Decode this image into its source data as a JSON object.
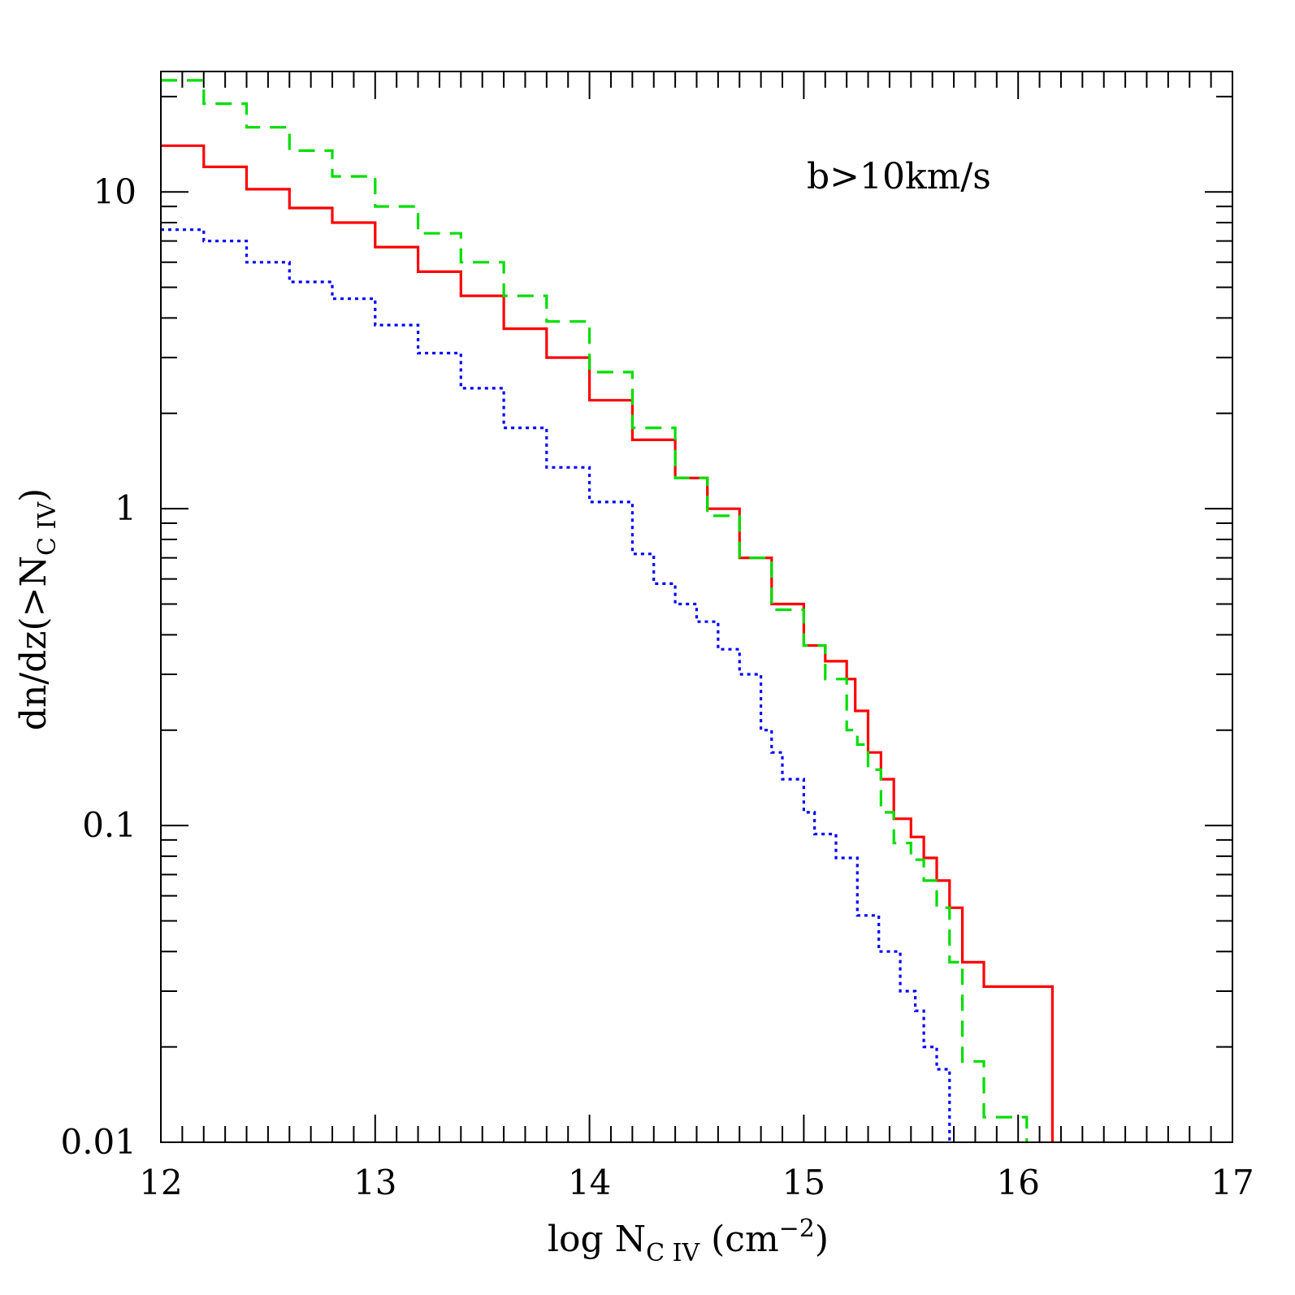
{
  "chart_data": {
    "type": "line",
    "step": true,
    "x_scale": "linear",
    "y_scale": "log",
    "xlim": [
      12,
      17
    ],
    "ylim": [
      0.01,
      24
    ],
    "grid": false,
    "x_ticks": [
      12,
      13,
      14,
      15,
      16,
      17
    ],
    "x_tick_labels": [
      "12",
      "13",
      "14",
      "15",
      "16",
      "17"
    ],
    "y_ticks": [
      0.01,
      0.1,
      1,
      10
    ],
    "y_tick_labels": [
      "0.01",
      "0.1",
      "1",
      "10"
    ],
    "xlabel": {
      "main": "log N",
      "sub": "C IV",
      "unit": "(cm",
      "sup": "−2",
      "close": ")"
    },
    "ylabel": {
      "main": "dn/dz(>N",
      "sub": "C IV",
      "close": ")"
    },
    "annotation": "b>10km/s",
    "series": [
      {
        "color": "#ff0000",
        "dash": "solid",
        "x": [
          12.0,
          12.2,
          12.4,
          12.6,
          12.8,
          13.0,
          13.2,
          13.4,
          13.6,
          13.8,
          14.0,
          14.2,
          14.4,
          14.55,
          14.7,
          14.85,
          15.0,
          15.1,
          15.2,
          15.24,
          15.3,
          15.36,
          15.42,
          15.5,
          15.56,
          15.62,
          15.68,
          15.74,
          15.84,
          16.16
        ],
        "y": [
          14.0,
          12.0,
          10.2,
          8.9,
          8.0,
          6.7,
          5.6,
          4.7,
          3.7,
          3.0,
          2.2,
          1.65,
          1.25,
          1.0,
          0.7,
          0.5,
          0.37,
          0.33,
          0.29,
          0.23,
          0.17,
          0.14,
          0.105,
          0.092,
          0.079,
          0.067,
          0.055,
          0.037,
          0.031,
          0.025
        ]
      },
      {
        "color": "#00dd00",
        "dash": "dashed",
        "x": [
          12.0,
          12.2,
          12.4,
          12.6,
          12.8,
          13.0,
          13.2,
          13.4,
          13.6,
          13.8,
          14.0,
          14.2,
          14.4,
          14.55,
          14.7,
          14.85,
          15.0,
          15.1,
          15.2,
          15.25,
          15.3,
          15.36,
          15.42,
          15.5,
          15.56,
          15.62,
          15.68,
          15.74,
          15.84,
          16.04
        ],
        "y": [
          22.5,
          19.0,
          16.0,
          13.5,
          11.2,
          9.0,
          7.4,
          6.0,
          4.7,
          3.9,
          2.7,
          1.8,
          1.25,
          0.95,
          0.7,
          0.48,
          0.37,
          0.29,
          0.2,
          0.18,
          0.15,
          0.11,
          0.088,
          0.078,
          0.067,
          0.055,
          0.037,
          0.018,
          0.012,
          0.012
        ]
      },
      {
        "color": "#0000ff",
        "dash": "dotted",
        "x": [
          12.0,
          12.2,
          12.4,
          12.6,
          12.8,
          13.0,
          13.2,
          13.4,
          13.6,
          13.8,
          14.0,
          14.2,
          14.3,
          14.4,
          14.5,
          14.6,
          14.7,
          14.8,
          14.85,
          14.9,
          15.0,
          15.05,
          15.15,
          15.25,
          15.35,
          15.45,
          15.52,
          15.56,
          15.62,
          15.68
        ],
        "y": [
          7.6,
          7.0,
          6.0,
          5.2,
          4.6,
          3.8,
          3.1,
          2.4,
          1.8,
          1.35,
          1.05,
          0.72,
          0.58,
          0.5,
          0.44,
          0.36,
          0.3,
          0.2,
          0.17,
          0.14,
          0.11,
          0.094,
          0.079,
          0.052,
          0.04,
          0.03,
          0.026,
          0.02,
          0.017,
          0.012
        ]
      }
    ]
  }
}
